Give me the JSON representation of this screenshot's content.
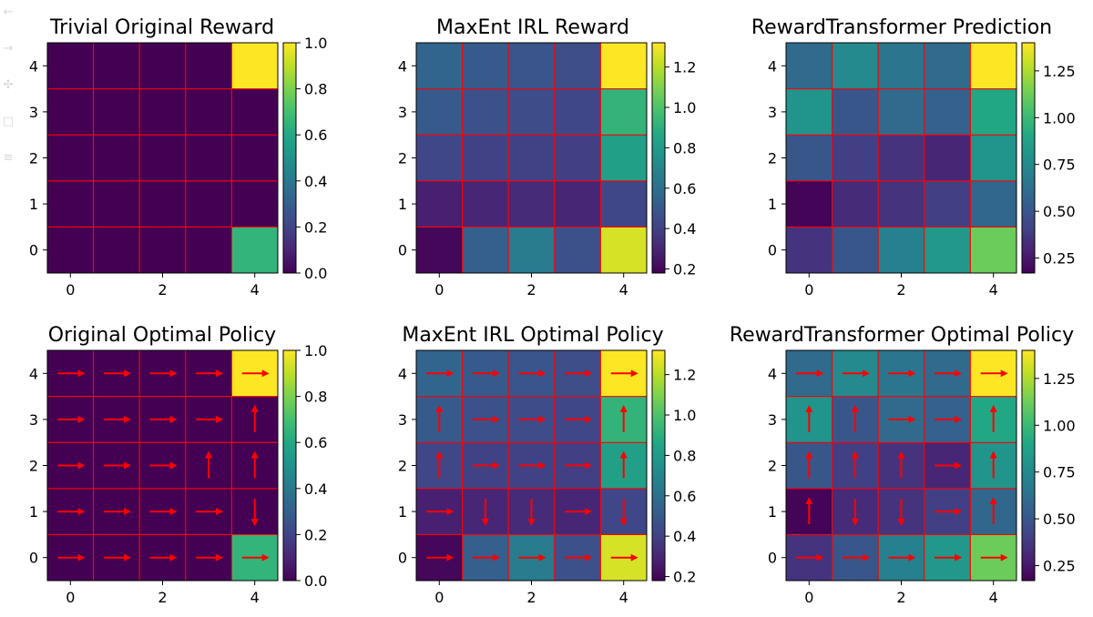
{
  "toolbar": {
    "icons": [
      "back-arrow-icon",
      "forward-arrow-icon",
      "pan-move-icon",
      "zoom-rect-icon",
      "subplots-config-icon"
    ]
  },
  "chart_data": [
    {
      "type": "heatmap",
      "title": "Trivial Original Reward",
      "x_ticks": [
        0,
        2,
        4
      ],
      "y_ticks": [
        0,
        1,
        2,
        3,
        4
      ],
      "colormap": "viridis",
      "grid_line_color": "#ff0000",
      "vmin": 0.0,
      "vmax": 1.0,
      "colorbar_ticks": [
        "0.0",
        "0.2",
        "0.4",
        "0.6",
        "0.8",
        "1.0"
      ],
      "colorbar_tick_values": [
        0.0,
        0.2,
        0.4,
        0.6,
        0.8,
        1.0
      ],
      "values": [
        [
          0.0,
          0.0,
          0.0,
          0.0,
          1.0
        ],
        [
          0.0,
          0.0,
          0.0,
          0.0,
          0.0
        ],
        [
          0.0,
          0.0,
          0.0,
          0.0,
          0.0
        ],
        [
          0.0,
          0.0,
          0.0,
          0.0,
          0.0
        ],
        [
          0.0,
          0.0,
          0.0,
          0.0,
          0.65
        ]
      ]
    },
    {
      "type": "heatmap",
      "title": "MaxEnt IRL Reward",
      "x_ticks": [
        0,
        2,
        4
      ],
      "y_ticks": [
        0,
        1,
        2,
        3,
        4
      ],
      "colormap": "viridis",
      "grid_line_color": "#ff0000",
      "vmin": 0.18,
      "vmax": 1.32,
      "colorbar_ticks": [
        "0.2",
        "0.4",
        "0.6",
        "0.8",
        "1.0",
        "1.2"
      ],
      "colorbar_tick_values": [
        0.2,
        0.4,
        0.6,
        0.8,
        1.0,
        1.2
      ],
      "values": [
        [
          0.55,
          0.5,
          0.48,
          0.45,
          1.32
        ],
        [
          0.5,
          0.46,
          0.44,
          0.42,
          0.92
        ],
        [
          0.42,
          0.4,
          0.4,
          0.39,
          0.82
        ],
        [
          0.28,
          0.3,
          0.32,
          0.3,
          0.42
        ],
        [
          0.2,
          0.52,
          0.65,
          0.46,
          1.25
        ]
      ]
    },
    {
      "type": "heatmap",
      "title": "RewardTransformer Prediction",
      "x_ticks": [
        0,
        2,
        4
      ],
      "y_ticks": [
        0,
        1,
        2,
        3,
        4
      ],
      "colormap": "viridis",
      "grid_line_color": "#ff0000",
      "vmin": 0.17,
      "vmax": 1.4,
      "colorbar_ticks": [
        "0.25",
        "0.50",
        "0.75",
        "1.00",
        "1.25"
      ],
      "colorbar_tick_values": [
        0.25,
        0.5,
        0.75,
        1.0,
        1.25
      ],
      "values": [
        [
          0.6,
          0.75,
          0.65,
          0.6,
          1.4
        ],
        [
          0.8,
          0.5,
          0.6,
          0.55,
          0.9
        ],
        [
          0.5,
          0.4,
          0.35,
          0.3,
          0.8
        ],
        [
          0.18,
          0.32,
          0.35,
          0.4,
          0.58
        ],
        [
          0.35,
          0.5,
          0.7,
          0.82,
          1.12
        ]
      ]
    },
    {
      "type": "heatmap",
      "title": "Original Optimal Policy",
      "x_ticks": [
        0,
        2,
        4
      ],
      "y_ticks": [
        0,
        1,
        2,
        3,
        4
      ],
      "colormap": "viridis",
      "grid_line_color": "#ff0000",
      "arrow_color": "#ff0000",
      "vmin": 0.0,
      "vmax": 1.0,
      "colorbar_ticks": [
        "0.0",
        "0.2",
        "0.4",
        "0.6",
        "0.8",
        "1.0"
      ],
      "colorbar_tick_values": [
        0.0,
        0.2,
        0.4,
        0.6,
        0.8,
        1.0
      ],
      "values": [
        [
          0.0,
          0.0,
          0.0,
          0.0,
          1.0
        ],
        [
          0.0,
          0.0,
          0.0,
          0.0,
          0.0
        ],
        [
          0.0,
          0.0,
          0.0,
          0.0,
          0.0
        ],
        [
          0.0,
          0.0,
          0.0,
          0.0,
          0.0
        ],
        [
          0.0,
          0.0,
          0.0,
          0.0,
          0.65
        ]
      ],
      "policy": [
        [
          "right",
          "right",
          "right",
          "right",
          "right"
        ],
        [
          "right",
          "right",
          "right",
          "right",
          "up"
        ],
        [
          "right",
          "right",
          "right",
          "up",
          "up"
        ],
        [
          "right",
          "right",
          "right",
          "right",
          "down"
        ],
        [
          "right",
          "right",
          "right",
          "right",
          "right"
        ]
      ]
    },
    {
      "type": "heatmap",
      "title": "MaxEnt IRL Optimal Policy",
      "x_ticks": [
        0,
        2,
        4
      ],
      "y_ticks": [
        0,
        1,
        2,
        3,
        4
      ],
      "colormap": "viridis",
      "grid_line_color": "#ff0000",
      "arrow_color": "#ff0000",
      "vmin": 0.18,
      "vmax": 1.32,
      "colorbar_ticks": [
        "0.2",
        "0.4",
        "0.6",
        "0.8",
        "1.0",
        "1.2"
      ],
      "colorbar_tick_values": [
        0.2,
        0.4,
        0.6,
        0.8,
        1.0,
        1.2
      ],
      "values": [
        [
          0.55,
          0.5,
          0.48,
          0.45,
          1.32
        ],
        [
          0.5,
          0.46,
          0.44,
          0.42,
          0.92
        ],
        [
          0.42,
          0.4,
          0.4,
          0.39,
          0.82
        ],
        [
          0.28,
          0.3,
          0.32,
          0.3,
          0.42
        ],
        [
          0.2,
          0.52,
          0.65,
          0.46,
          1.25
        ]
      ],
      "policy": [
        [
          "right",
          "right",
          "right",
          "right",
          "right"
        ],
        [
          "up",
          "right",
          "right",
          "right",
          "up"
        ],
        [
          "up",
          "right",
          "right",
          "right",
          "up"
        ],
        [
          "right",
          "down",
          "down",
          "right",
          "down"
        ],
        [
          "right",
          "right",
          "right",
          "right",
          "right"
        ]
      ]
    },
    {
      "type": "heatmap",
      "title": "RewardTransformer Optimal Policy",
      "x_ticks": [
        0,
        2,
        4
      ],
      "y_ticks": [
        0,
        1,
        2,
        3,
        4
      ],
      "colormap": "viridis",
      "grid_line_color": "#ff0000",
      "arrow_color": "#ff0000",
      "vmin": 0.17,
      "vmax": 1.4,
      "colorbar_ticks": [
        "0.25",
        "0.50",
        "0.75",
        "1.00",
        "1.25"
      ],
      "colorbar_tick_values": [
        0.25,
        0.5,
        0.75,
        1.0,
        1.25
      ],
      "values": [
        [
          0.6,
          0.75,
          0.65,
          0.6,
          1.4
        ],
        [
          0.8,
          0.5,
          0.6,
          0.55,
          0.9
        ],
        [
          0.5,
          0.4,
          0.35,
          0.3,
          0.8
        ],
        [
          0.18,
          0.32,
          0.35,
          0.4,
          0.58
        ],
        [
          0.35,
          0.5,
          0.7,
          0.82,
          1.12
        ]
      ],
      "policy": [
        [
          "right",
          "right",
          "right",
          "right",
          "right"
        ],
        [
          "up",
          "up",
          "right",
          "right",
          "up"
        ],
        [
          "up",
          "up",
          "up",
          "right",
          "up"
        ],
        [
          "up",
          "down",
          "down",
          "right",
          "up"
        ],
        [
          "right",
          "right",
          "right",
          "right",
          "right"
        ]
      ]
    }
  ]
}
